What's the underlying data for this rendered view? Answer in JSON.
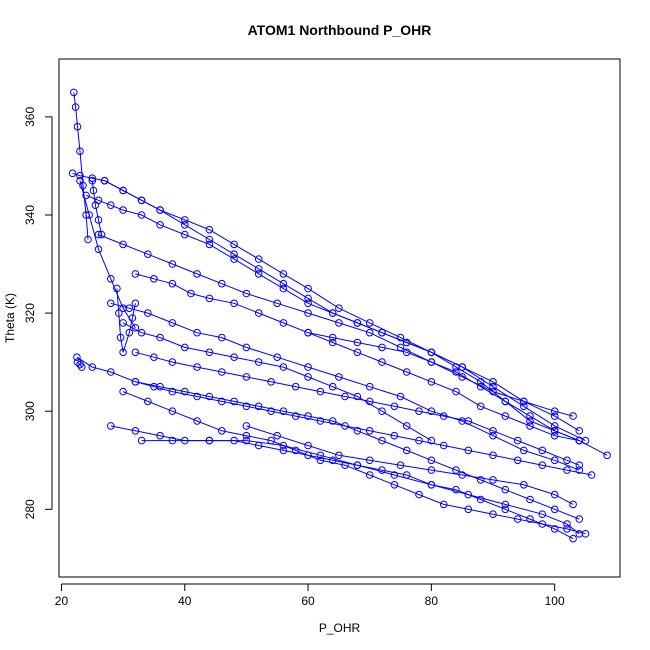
{
  "chart_data": {
    "type": "scatter",
    "title": "ATOM1 Northbound P_OHR",
    "xlabel": "P_OHR",
    "ylabel": "Theta (K)",
    "xlim": [
      19.6,
      110.6
    ],
    "ylim": [
      266.2,
      371.8
    ],
    "xticks": [
      20,
      40,
      60,
      80,
      100
    ],
    "yticks": [
      280,
      300,
      320,
      340,
      360
    ],
    "grid": false,
    "legend": "none",
    "point_style": "open-circle-with-connecting-lines",
    "color": "#0000ff",
    "series": [
      {
        "x": [
          22,
          22.3,
          22.6,
          23,
          23.5,
          24,
          24.3
        ],
        "y": [
          365,
          362,
          358,
          353,
          346,
          340,
          335
        ]
      },
      {
        "x": [
          21.8,
          23,
          25,
          27,
          30,
          33,
          36,
          40,
          44,
          48,
          52,
          56,
          60,
          65,
          70,
          75,
          80,
          85,
          90,
          95,
          100,
          104
        ],
        "y": [
          348.5,
          348,
          347.5,
          347,
          345,
          343,
          341,
          339,
          337,
          334,
          331,
          328,
          325,
          321,
          318,
          315,
          312,
          309,
          306,
          302,
          299,
          296
        ]
      },
      {
        "x": [
          24,
          26,
          28,
          30,
          33,
          36,
          40,
          44,
          48,
          52,
          56,
          60,
          64,
          68,
          72,
          76,
          80,
          85,
          90,
          95,
          100,
          105
        ],
        "y": [
          344,
          343,
          342,
          341,
          340,
          338,
          336,
          334,
          331,
          328,
          325,
          322,
          320,
          318,
          316,
          314,
          312,
          309,
          305,
          301,
          297,
          294
        ]
      },
      {
        "x": [
          27,
          30,
          33,
          36,
          40,
          44,
          48,
          52,
          56,
          60,
          64,
          68,
          72,
          76,
          80,
          84,
          88,
          92,
          96,
          100,
          104
        ],
        "y": [
          347,
          345,
          343,
          341,
          338,
          335,
          332,
          329,
          326,
          323,
          320,
          318,
          316,
          314,
          312,
          309,
          306,
          302,
          298,
          296,
          294
        ]
      },
      {
        "x": [
          23,
          24.5,
          26,
          28,
          30,
          32
        ],
        "y": [
          347,
          340,
          333,
          327,
          321,
          317
        ]
      },
      {
        "x": [
          29,
          29.3,
          29.6,
          30,
          31,
          31.5,
          32
        ],
        "y": [
          325,
          320,
          315,
          312,
          316,
          319,
          322
        ]
      },
      {
        "x": [
          32,
          35,
          38,
          41,
          44,
          48,
          52,
          56,
          60,
          64,
          68,
          72,
          76,
          80,
          84,
          88,
          92,
          96,
          100,
          104
        ],
        "y": [
          328,
          327,
          326,
          324,
          323,
          322,
          320,
          318,
          316,
          314,
          312,
          310,
          308,
          306,
          304,
          301,
          299,
          297,
          295,
          294
        ]
      },
      {
        "x": [
          26,
          30,
          34,
          38,
          42,
          46,
          50,
          55,
          60,
          65,
          70,
          75,
          80,
          85,
          90,
          95,
          100,
          103
        ],
        "y": [
          336,
          334,
          332,
          330,
          328,
          326,
          324,
          322,
          320,
          318,
          316,
          313,
          310,
          307,
          304,
          302,
          300,
          299
        ]
      },
      {
        "x": [
          28,
          31,
          34,
          38,
          42,
          46,
          50,
          55,
          60,
          65,
          70,
          75,
          80,
          85,
          90,
          95,
          100,
          104
        ],
        "y": [
          322,
          321,
          320,
          318,
          316,
          315,
          313,
          311,
          309,
          307,
          305,
          303,
          300,
          298,
          295,
          292,
          290,
          288
        ]
      },
      {
        "x": [
          30,
          33,
          36,
          40,
          44,
          48,
          52,
          56,
          60,
          64,
          68,
          72,
          76,
          80
        ],
        "y": [
          318,
          316,
          315,
          313,
          312,
          311,
          310,
          309,
          307,
          305,
          303,
          300,
          297,
          294
        ]
      },
      {
        "x": [
          32,
          35,
          38,
          42,
          46,
          50,
          54,
          58,
          62,
          66,
          70,
          74,
          78,
          82,
          86,
          90,
          94,
          98,
          102,
          104
        ],
        "y": [
          312,
          311,
          310,
          309,
          308,
          307,
          306,
          305,
          304,
          303,
          302,
          301,
          300,
          299,
          298,
          296,
          294,
          292,
          290,
          289
        ]
      },
      {
        "x": [
          22.5,
          25,
          28,
          32,
          36,
          40,
          44,
          48,
          52,
          56,
          60,
          64,
          68,
          72,
          76,
          80,
          84,
          88,
          92,
          96,
          100,
          104
        ],
        "y": [
          311,
          309,
          308,
          306,
          305,
          304,
          303,
          302,
          301,
          300,
          299,
          298,
          296,
          294,
          292,
          290,
          288,
          286,
          284,
          282,
          280,
          278
        ]
      },
      {
        "x": [
          30,
          34,
          38,
          42,
          46,
          50,
          54,
          58,
          62,
          66,
          70,
          74,
          78,
          82,
          86,
          90,
          94,
          98,
          102,
          105
        ],
        "y": [
          304,
          302,
          300,
          298,
          296,
          295,
          294,
          292,
          290,
          289,
          287,
          285,
          283,
          281,
          280,
          279,
          278,
          277,
          276,
          275
        ]
      },
      {
        "x": [
          28,
          32,
          36,
          40,
          44,
          48,
          52,
          56,
          60,
          64,
          68,
          72,
          76,
          80,
          84,
          88,
          92,
          96,
          100,
          103
        ],
        "y": [
          297,
          296,
          295,
          294,
          294,
          294,
          293,
          292,
          291,
          290,
          289,
          288,
          287,
          285,
          284,
          282,
          280,
          278,
          276,
          274
        ]
      },
      {
        "x": [
          33,
          38,
          44,
          50,
          56,
          62,
          68,
          74,
          80,
          86,
          92,
          98,
          102,
          104
        ],
        "y": [
          294,
          294,
          294,
          294,
          293,
          291,
          289,
          287,
          285,
          283,
          281,
          279,
          277,
          275
        ]
      },
      {
        "x": [
          32,
          35,
          38,
          42,
          46,
          50,
          54,
          58,
          62,
          66,
          70,
          74,
          78,
          82,
          86,
          90,
          94,
          98,
          102,
          106
        ],
        "y": [
          306,
          305,
          304,
          303,
          302,
          301,
          300,
          299,
          298,
          297,
          296,
          295,
          294,
          293,
          292,
          291,
          290,
          289,
          288,
          287
        ]
      },
      {
        "x": [
          60,
          64,
          68,
          72,
          76,
          80,
          84,
          88,
          92,
          96,
          100,
          104,
          108.5
        ],
        "y": [
          316,
          315,
          314,
          313,
          312,
          310,
          308,
          305,
          302,
          299,
          296,
          294,
          291
        ]
      },
      {
        "x": [
          50,
          55,
          60,
          65,
          70,
          75,
          80,
          85,
          90,
          95,
          100,
          103
        ],
        "y": [
          297,
          295,
          293,
          291,
          290,
          289,
          288,
          287,
          286,
          285,
          283,
          281
        ]
      },
      {
        "x": [
          22.6,
          23,
          23.3
        ],
        "y": [
          310,
          309.5,
          309
        ]
      },
      {
        "x": [
          25,
          25.2,
          25.5,
          26,
          26.5
        ],
        "y": [
          347,
          345,
          342,
          339,
          336
        ]
      }
    ]
  }
}
